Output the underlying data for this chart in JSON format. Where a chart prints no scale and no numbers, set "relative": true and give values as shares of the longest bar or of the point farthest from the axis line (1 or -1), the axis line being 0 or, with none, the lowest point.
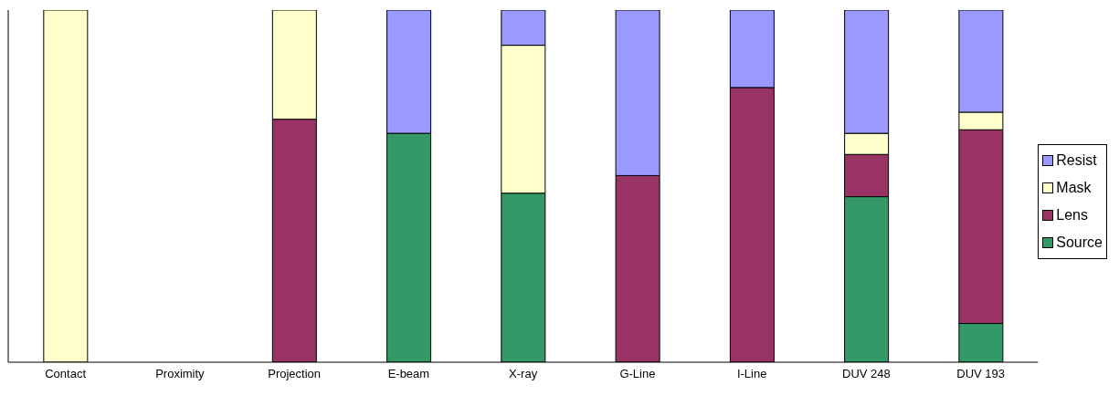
{
  "chart_data": {
    "type": "bar",
    "stacked": true,
    "relative": true,
    "legend": "right",
    "grid": false,
    "categories": [
      "Contact",
      "Proximity",
      "Projection",
      "E-beam",
      "X-ray",
      "G-Line",
      "I-Line",
      "DUV 248",
      "DUV 193"
    ],
    "series": [
      {
        "name": "Source",
        "color": "#339966",
        "values": [
          null,
          null,
          null,
          0.65,
          0.48,
          null,
          null,
          0.47,
          0.11
        ]
      },
      {
        "name": "Lens",
        "color": "#993366",
        "values": [
          null,
          null,
          0.69,
          null,
          null,
          0.53,
          0.78,
          0.12,
          0.55
        ]
      },
      {
        "name": "Mask",
        "color": "#ffffcc",
        "values": [
          1,
          null,
          0.31,
          null,
          0.42,
          null,
          null,
          0.06,
          0.05
        ]
      },
      {
        "name": "Resist",
        "color": "#9999ff",
        "values": [
          null,
          null,
          null,
          0.35,
          0.1,
          0.47,
          0.22,
          0.35,
          0.29
        ]
      }
    ]
  }
}
